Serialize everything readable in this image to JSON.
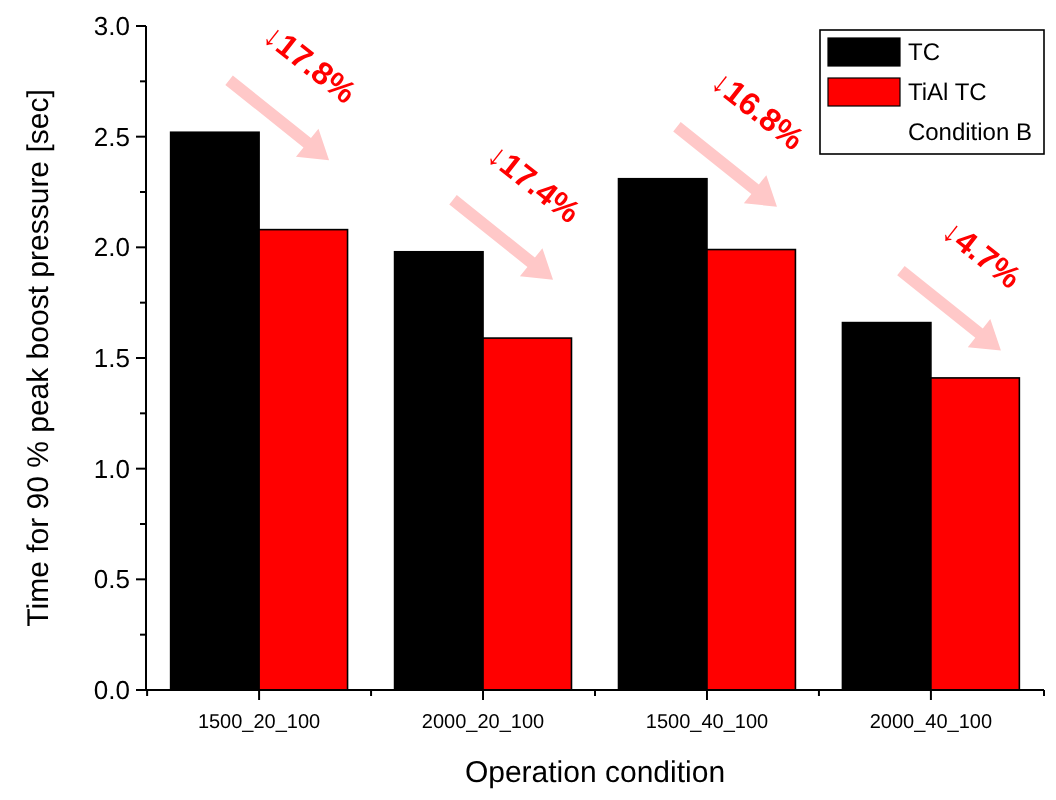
{
  "chart_data": {
    "type": "bar",
    "xlabel": "Operation condition",
    "ylabel": "Time for 90 % peak boost pressure [sec]",
    "categories": [
      "1500_20_100",
      "2000_20_100",
      "1500_40_100",
      "2000_40_100"
    ],
    "series": [
      {
        "name": "TC",
        "color": "#000000",
        "values": [
          2.52,
          1.98,
          2.31,
          1.66
        ]
      },
      {
        "name": "TiAl TC",
        "color": "#ff0000",
        "values": [
          2.08,
          1.59,
          1.99,
          1.41
        ]
      }
    ],
    "legend_title": "Condition B",
    "legend": "top right",
    "ylim": [
      0,
      3
    ],
    "yticks": [
      {
        "value": 0,
        "label": "0.0"
      },
      {
        "value": 0.5,
        "label": "0.5"
      },
      {
        "value": 1,
        "label": "1.0"
      },
      {
        "value": 1.5,
        "label": "1.5"
      },
      {
        "value": 2,
        "label": "2.0"
      },
      {
        "value": 2.5,
        "label": "2.5"
      },
      {
        "value": 3,
        "label": "3.0"
      }
    ],
    "annotations": [
      "↓17.8%",
      "↓17.4%",
      "↓16.8%",
      "↓4.7%"
    ]
  }
}
